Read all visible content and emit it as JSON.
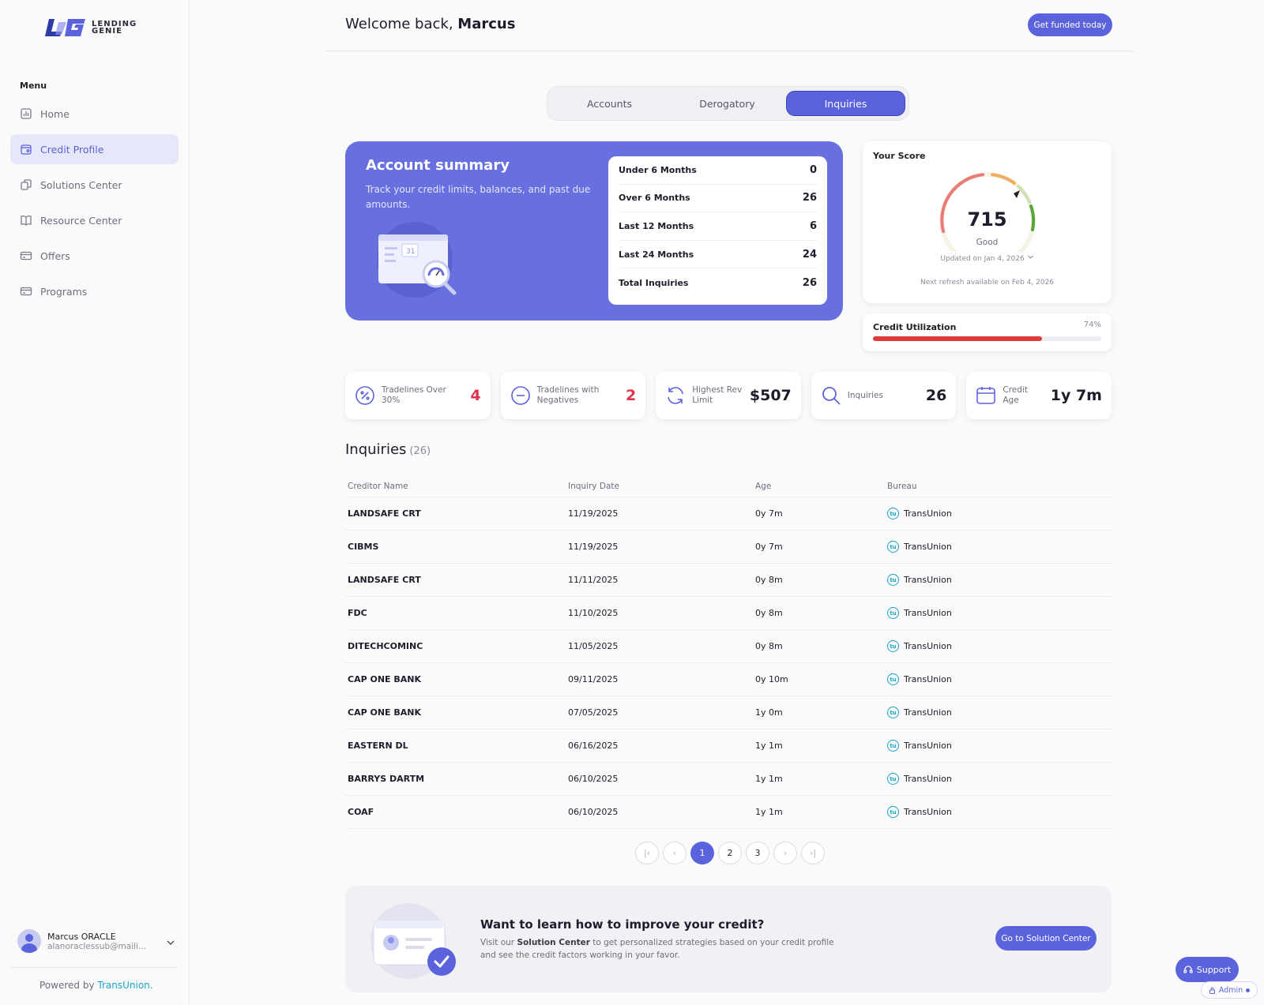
{
  "brand": {
    "logo_mark": "LG",
    "name_line1": "LENDING",
    "name_line2": "GENIE",
    "powered_prefix": "Powered by",
    "powered_brand": "TransUnion",
    "powered_suffix": ".",
    "accent": "#5b63dc"
  },
  "sidebar": {
    "menu_title": "Menu",
    "items": [
      {
        "label": "Home",
        "icon": "chart-icon"
      },
      {
        "label": "Credit Profile",
        "icon": "profile-icon",
        "active": true
      },
      {
        "label": "Solutions Center",
        "icon": "copy-icon"
      },
      {
        "label": "Resource Center",
        "icon": "book-icon"
      },
      {
        "label": "Offers",
        "icon": "card-icon"
      },
      {
        "label": "Programs",
        "icon": "card-icon"
      }
    ]
  },
  "user": {
    "name": "Marcus ORACLE",
    "email": "alanoraclessub@maili..."
  },
  "header": {
    "welcome_prefix": "Welcome back,",
    "user_first_name": "Marcus",
    "cta_label": "Get funded today"
  },
  "tabs": [
    {
      "label": "Accounts"
    },
    {
      "label": "Derogatory"
    },
    {
      "label": "Inquiries",
      "active": true
    }
  ],
  "summary": {
    "title": "Account summary",
    "description": "Track your credit limits, balances, and past due amounts.",
    "calendar_day": "31",
    "rows": [
      {
        "label": "Under 6 Months",
        "value": "0"
      },
      {
        "label": "Over 6 Months",
        "value": "26"
      },
      {
        "label": "Last 12 Months",
        "value": "6"
      },
      {
        "label": "Last 24 Months",
        "value": "24"
      },
      {
        "label": "Total Inquiries",
        "value": "26"
      }
    ]
  },
  "score": {
    "label": "Your Score",
    "value": "715",
    "rating": "Good",
    "updated": "Updated on Jan 4, 2026",
    "refresh": "Next refresh available on Feb 4, 2026"
  },
  "utilization": {
    "label": "Credit Utilization",
    "percent_text": "74%",
    "percent": 74,
    "color": "#e03b3b"
  },
  "metrics": [
    {
      "label": "Tradelines Over 30%",
      "value": "4",
      "icon": "percent-icon",
      "red": true
    },
    {
      "label": "Tradelines with Negatives",
      "value": "2",
      "icon": "minus-circle-icon",
      "red": true
    },
    {
      "label": "Highest Rev Limit",
      "value": "$507",
      "icon": "refresh-icon",
      "red": false
    },
    {
      "label": "Inquiries",
      "value": "26",
      "icon": "search-icon",
      "red": false
    },
    {
      "label": "Credit Age",
      "value": "1y 7m",
      "icon": "calendar-icon",
      "red": false
    }
  ],
  "inquiries": {
    "title": "Inquiries",
    "count": "(26)",
    "columns": [
      "Creditor Name",
      "Inquiry Date",
      "Age",
      "Bureau"
    ],
    "bureau_icon_text": "tu",
    "rows": [
      {
        "creditor": "LANDSAFE CRT",
        "date": "11/19/2025",
        "age": "0y 7m",
        "bureau": "TransUnion"
      },
      {
        "creditor": "CIBMS",
        "date": "11/19/2025",
        "age": "0y 7m",
        "bureau": "TransUnion"
      },
      {
        "creditor": "LANDSAFE CRT",
        "date": "11/11/2025",
        "age": "0y 8m",
        "bureau": "TransUnion"
      },
      {
        "creditor": "FDC",
        "date": "11/10/2025",
        "age": "0y 8m",
        "bureau": "TransUnion"
      },
      {
        "creditor": "DITECHCOMINC",
        "date": "11/05/2025",
        "age": "0y 8m",
        "bureau": "TransUnion"
      },
      {
        "creditor": "CAP ONE BANK",
        "date": "09/11/2025",
        "age": "0y 10m",
        "bureau": "TransUnion"
      },
      {
        "creditor": "CAP ONE BANK",
        "date": "07/05/2025",
        "age": "1y 0m",
        "bureau": "TransUnion"
      },
      {
        "creditor": "EASTERN DL",
        "date": "06/16/2025",
        "age": "1y 1m",
        "bureau": "TransUnion"
      },
      {
        "creditor": "BARRYS DARTM",
        "date": "06/10/2025",
        "age": "1y 1m",
        "bureau": "TransUnion"
      },
      {
        "creditor": "COAF",
        "date": "06/10/2025",
        "age": "1y 1m",
        "bureau": "TransUnion"
      }
    ]
  },
  "pagination": {
    "first": "|‹",
    "prev": "‹",
    "pages": [
      "1",
      "2",
      "3"
    ],
    "current": "1",
    "next": "›",
    "last": "›|"
  },
  "cta": {
    "title": "Want to learn how to improve your credit?",
    "desc_prefix": "Visit our",
    "desc_link": "Solution Center",
    "desc_suffix": "to get personalized strategies based on your credit profile and see the credit factors working in your favor.",
    "button": "Go to Solution Center"
  },
  "support": {
    "label": "Support"
  },
  "admin": {
    "label": "Admin"
  }
}
